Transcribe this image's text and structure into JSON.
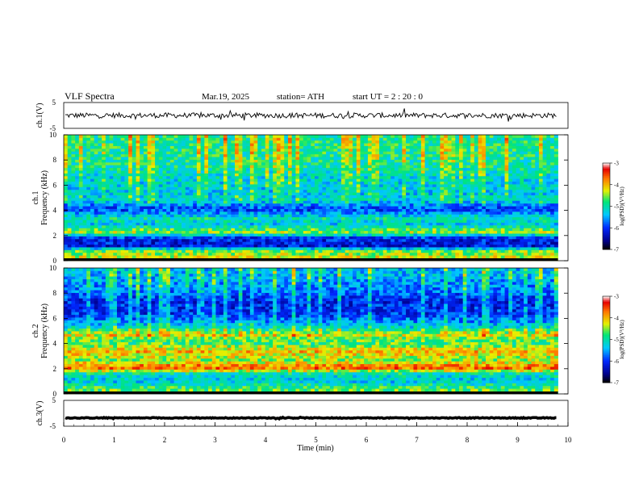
{
  "header": {
    "title": "VLF  Spectra",
    "date": "Mar.19, 2025",
    "station": "station= ATH",
    "start": "start  UT  =   2  : 20 : 0"
  },
  "chart_data": {
    "type": "heatmap",
    "x_axis": {
      "label": "Time  (min)",
      "range": [
        0,
        10
      ],
      "ticks": [
        "0",
        "1",
        "2",
        "3",
        "4",
        "5",
        "6",
        "7",
        "8",
        "9",
        "10"
      ],
      "data_end_min": 9.8
    },
    "panels": [
      {
        "kind": "waveform",
        "ylabel": "ch.1(V)",
        "yticks": [
          "5",
          "-5"
        ],
        "ylim": [
          -5,
          5
        ],
        "trace_level_v": 0.0,
        "trace_amplitude_v": 1.0,
        "color": "#000000"
      },
      {
        "kind": "spectrogram",
        "ylabel_line1": "ch.1",
        "ylabel_line2": "Frequency  (kHz)",
        "ylim": [
          0,
          10
        ],
        "yticks": [
          "0",
          "2",
          "4",
          "6",
          "8",
          "10"
        ],
        "colorbar": {
          "label": "log(PSD)(V²/Hz)",
          "range": [
            -7,
            -3
          ],
          "ticks": [
            "-3",
            "-4",
            "-5",
            "-6",
            "-7"
          ]
        },
        "band_profile": [
          {
            "f": 0.3,
            "v": -4.3
          },
          {
            "f": 0.8,
            "v": -4.6
          },
          {
            "f": 1.2,
            "v": -6.2
          },
          {
            "f": 1.8,
            "v": -6.1
          },
          {
            "f": 2.3,
            "v": -4.4
          },
          {
            "f": 2.9,
            "v": -5.3
          },
          {
            "f": 3.4,
            "v": -5.0
          },
          {
            "f": 4.1,
            "v": -6.0
          },
          {
            "f": 4.8,
            "v": -5.2
          },
          {
            "f": 5.5,
            "v": -5.3
          },
          {
            "f": 6.5,
            "v": -5.2
          },
          {
            "f": 7.5,
            "v": -5.0
          },
          {
            "f": 8.5,
            "v": -4.9
          },
          {
            "f": 9.6,
            "v": -4.9
          }
        ]
      },
      {
        "kind": "spectrogram",
        "ylabel_line1": "ch.2",
        "ylabel_line2": "Frequency  (kHz)",
        "ylim": [
          0,
          10
        ],
        "yticks": [
          "0",
          "2",
          "4",
          "6",
          "8",
          "10"
        ],
        "colorbar": {
          "label": "log(PSD)(V²/Hz)",
          "range": [
            -7,
            -3
          ],
          "ticks": [
            "-3",
            "-4",
            "-5",
            "-6",
            "-7"
          ]
        },
        "band_profile": [
          {
            "f": 0.3,
            "v": -4.6
          },
          {
            "f": 1.0,
            "v": -5.3
          },
          {
            "f": 1.6,
            "v": -5.1
          },
          {
            "f": 2.1,
            "v": -3.6
          },
          {
            "f": 2.7,
            "v": -4.5
          },
          {
            "f": 3.4,
            "v": -4.0
          },
          {
            "f": 4.1,
            "v": -4.8
          },
          {
            "f": 4.7,
            "v": -4.3
          },
          {
            "f": 5.4,
            "v": -5.3
          },
          {
            "f": 6.3,
            "v": -6.0
          },
          {
            "f": 7.3,
            "v": -6.1
          },
          {
            "f": 8.3,
            "v": -5.7
          },
          {
            "f": 9.5,
            "v": -5.4
          }
        ]
      },
      {
        "kind": "waveform",
        "ylabel": "ch.3(V)",
        "yticks": [
          "5",
          "-5"
        ],
        "ylim": [
          -5,
          5
        ],
        "trace_level_v": -1.8,
        "trace_amplitude_v": 0.15,
        "color": "#000000"
      }
    ]
  }
}
